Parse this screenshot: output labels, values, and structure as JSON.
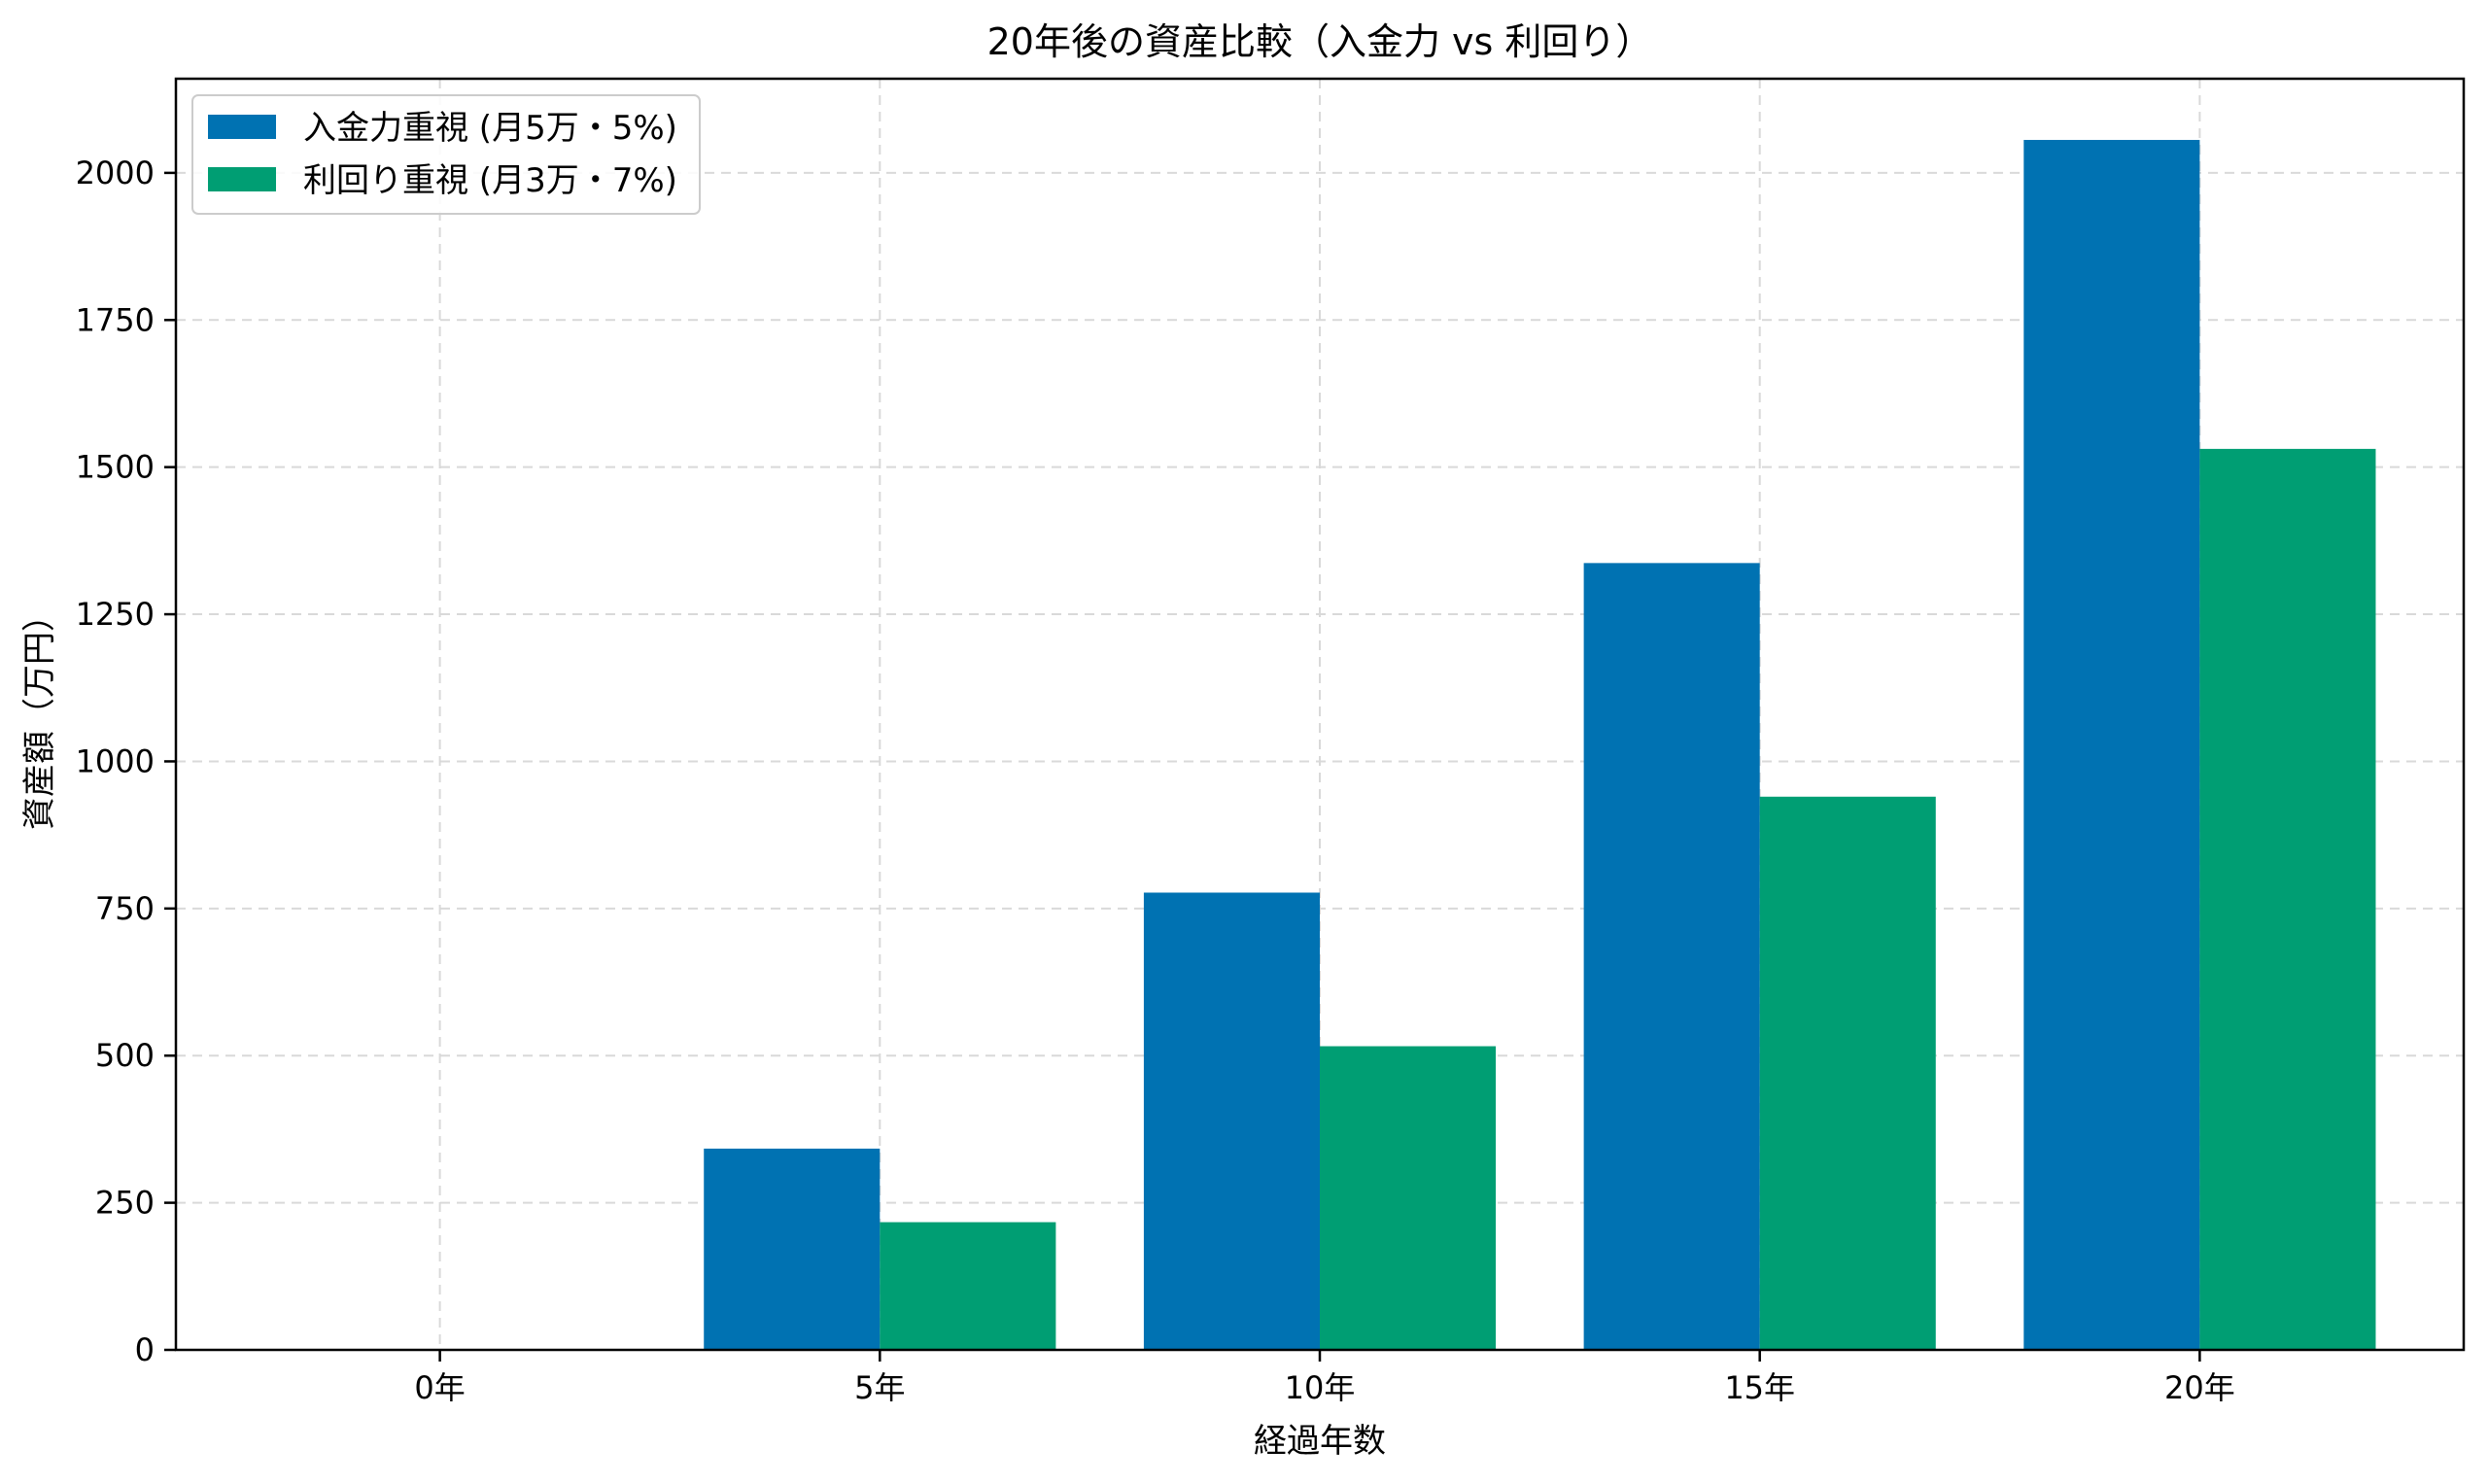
{
  "chart_data": {
    "type": "bar",
    "title": "20年後の資産比較（入金力 vs 利回り）",
    "xlabel": "経過年数",
    "ylabel": "資産額（万円）",
    "categories": [
      "0年",
      "5年",
      "10年",
      "15年",
      "20年"
    ],
    "series": [
      {
        "name": "入金力重視 (月5万・5%)",
        "color": "#0072b2",
        "values": [
          0,
          342,
          777,
          1337,
          2056
        ]
      },
      {
        "name": "利回り重視 (月3万・7%)",
        "color": "#009e73",
        "values": [
          0,
          217,
          516,
          940,
          1531
        ]
      }
    ],
    "ylim": [
      0,
      2160
    ],
    "yticks": [
      0,
      250,
      500,
      750,
      1000,
      1250,
      1500,
      1750,
      2000
    ],
    "grid": true,
    "legend_position": "top-left"
  }
}
